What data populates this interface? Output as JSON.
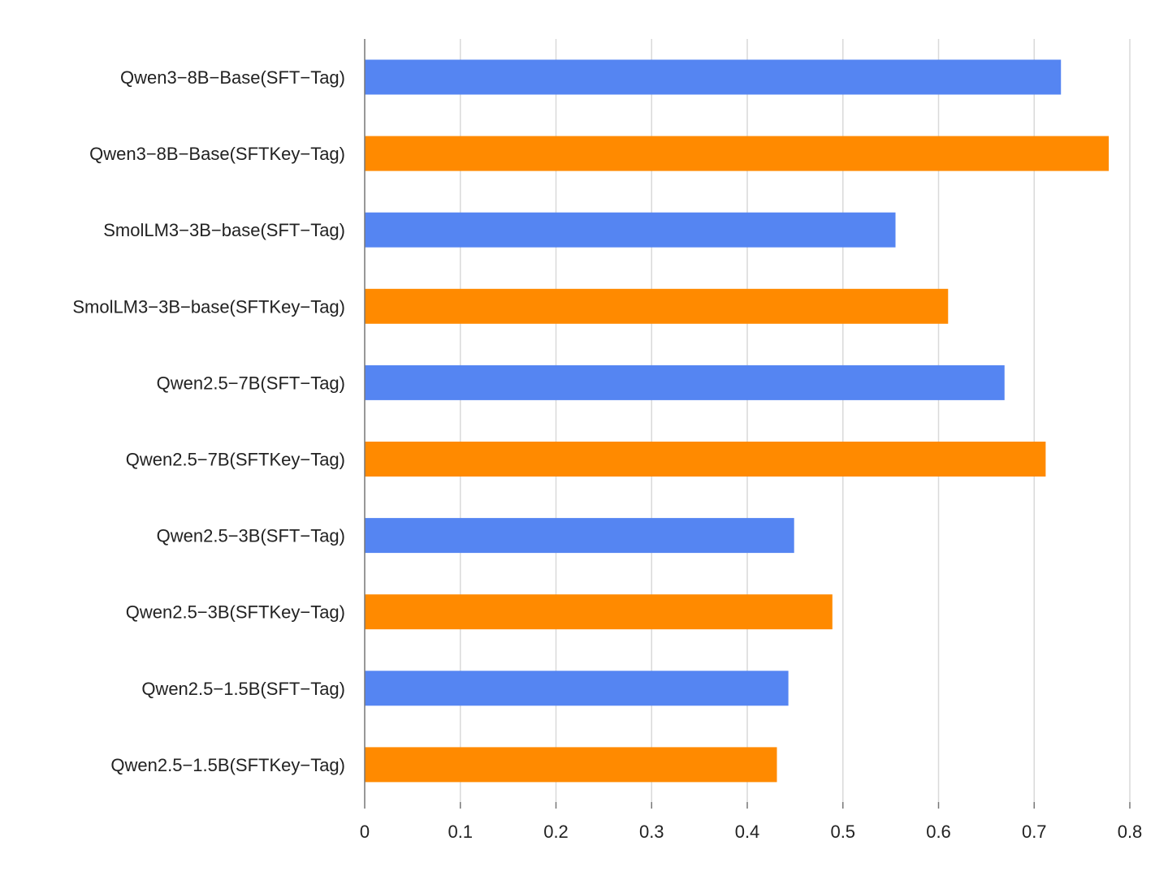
{
  "chart_data": {
    "type": "bar",
    "orientation": "horizontal",
    "title": "",
    "xlabel": "",
    "ylabel": "",
    "xlim": [
      0,
      0.8
    ],
    "x_ticks": [
      "0",
      "0.1",
      "0.2",
      "0.3",
      "0.4",
      "0.5",
      "0.6",
      "0.7",
      "0.8"
    ],
    "grid": true,
    "legend": "none",
    "categories": [
      "Qwen3−8B−Base(SFT−Tag)",
      "Qwen3−8B−Base(SFTKey−Tag)",
      "SmolLM3−3B−base(SFT−Tag)",
      "SmolLM3−3B−base(SFTKey−Tag)",
      "Qwen2.5−7B(SFT−Tag)",
      "Qwen2.5−7B(SFTKey−Tag)",
      "Qwen2.5−3B(SFT−Tag)",
      "Qwen2.5−3B(SFTKey−Tag)",
      "Qwen2.5−1.5B(SFT−Tag)",
      "Qwen2.5−1.5B(SFTKey−Tag)"
    ],
    "values": [
      0.728,
      0.778,
      0.555,
      0.61,
      0.669,
      0.712,
      0.449,
      0.489,
      0.443,
      0.431
    ],
    "bar_colors": [
      "#5585f2",
      "#ff8a00",
      "#5585f2",
      "#ff8a00",
      "#5585f2",
      "#ff8a00",
      "#5585f2",
      "#ff8a00",
      "#5585f2",
      "#ff8a00"
    ]
  }
}
